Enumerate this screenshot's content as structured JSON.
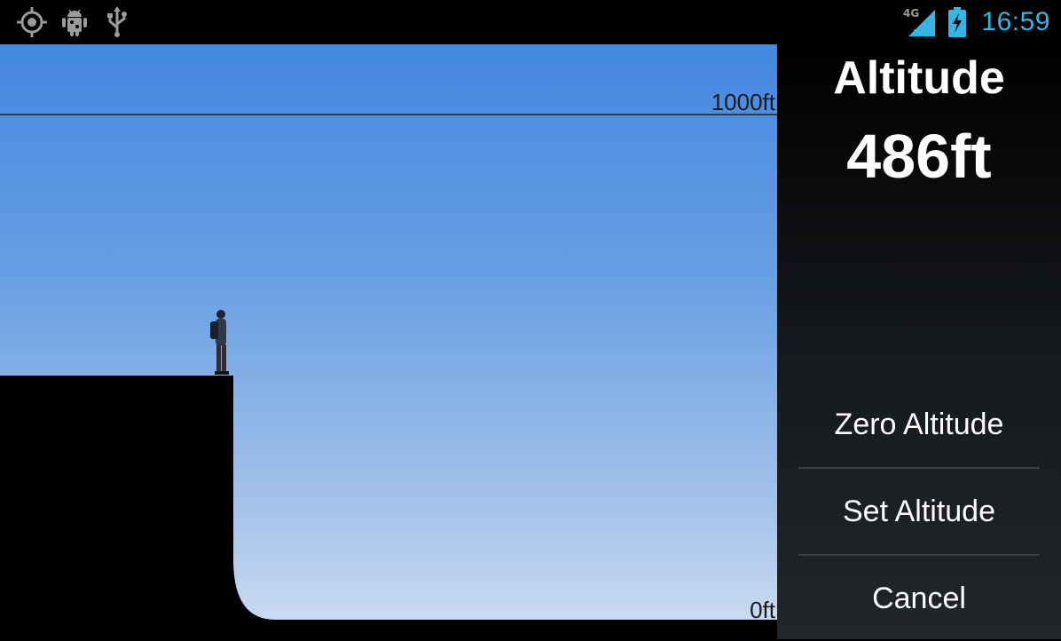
{
  "status_bar": {
    "icons": [
      "gps-icon",
      "android-debug-icon",
      "usb-icon",
      "signal-4g-icon",
      "battery-charging-icon"
    ],
    "network_label": "4G",
    "time": "16:59",
    "clock_color": "#33b5e5"
  },
  "scene": {
    "top_marker_label": "1000ft",
    "bottom_marker_label": "0ft",
    "sky_top_color": "#4387e0",
    "sky_bottom_color": "#cfdff3"
  },
  "panel": {
    "title": "Altitude",
    "value": "486ft",
    "buttons": [
      {
        "label": "Zero Altitude"
      },
      {
        "label": "Set Altitude"
      },
      {
        "label": "Cancel"
      }
    ]
  }
}
